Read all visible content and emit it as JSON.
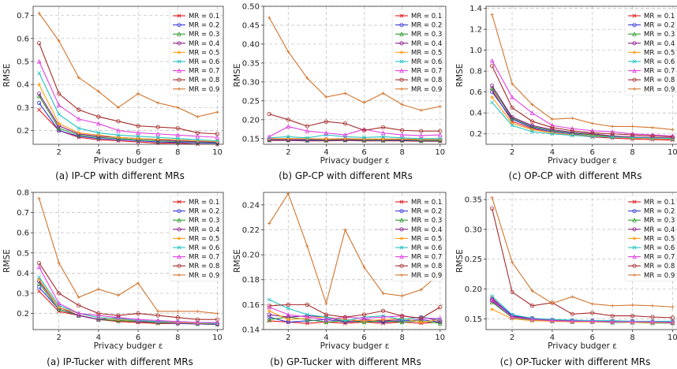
{
  "legend_labels": [
    "MR = 0.1",
    "MR = 0.2",
    "MR = 0.3",
    "MR = 0.4",
    "MR = 0.5",
    "MR = 0.6",
    "MR = 0.7",
    "MR = 0.8",
    "MR = 0.9"
  ],
  "series_colors": [
    "#e41a1c",
    "#3a3ad8",
    "#2e9a2e",
    "#8b1a8b",
    "#ff9f1c",
    "#22c3c3",
    "#e040e0",
    "#a52a2a",
    "#d2752e"
  ],
  "chart_data": [
    {
      "type": "line",
      "caption": "(a) IP-CP with different MRs",
      "xlabel": "Privacy budger ε",
      "ylabel": "RMSE",
      "x": [
        1,
        2,
        3,
        4,
        5,
        6,
        7,
        8,
        9,
        10
      ],
      "xlim": [
        0.7,
        10.3
      ],
      "ylim": [
        0.14,
        0.74
      ],
      "xticks": [
        2,
        4,
        6,
        8,
        10
      ],
      "yticks": [
        0.2,
        0.3,
        0.4,
        0.5,
        0.6,
        0.7
      ],
      "ytick_labels": [
        "0.2",
        "0.3",
        "0.4",
        "0.5",
        "0.6",
        "0.7"
      ],
      "series": [
        {
          "name": "MR = 0.1",
          "values": [
            0.29,
            0.2,
            0.17,
            0.16,
            0.155,
            0.15,
            0.145,
            0.145,
            0.14,
            0.14
          ]
        },
        {
          "name": "MR = 0.2",
          "values": [
            0.32,
            0.2,
            0.175,
            0.165,
            0.16,
            0.155,
            0.15,
            0.148,
            0.146,
            0.145
          ]
        },
        {
          "name": "MR = 0.3",
          "values": [
            0.35,
            0.21,
            0.18,
            0.17,
            0.165,
            0.16,
            0.155,
            0.152,
            0.15,
            0.148
          ]
        },
        {
          "name": "MR = 0.4",
          "values": [
            0.36,
            0.22,
            0.185,
            0.175,
            0.17,
            0.165,
            0.16,
            0.155,
            0.152,
            0.15
          ]
        },
        {
          "name": "MR = 0.5",
          "values": [
            0.4,
            0.23,
            0.19,
            0.18,
            0.17,
            0.165,
            0.162,
            0.16,
            0.155,
            0.152
          ]
        },
        {
          "name": "MR = 0.6",
          "values": [
            0.45,
            0.27,
            0.21,
            0.19,
            0.18,
            0.175,
            0.17,
            0.165,
            0.16,
            0.155
          ]
        },
        {
          "name": "MR = 0.7",
          "values": [
            0.5,
            0.31,
            0.25,
            0.23,
            0.2,
            0.19,
            0.185,
            0.18,
            0.175,
            0.17
          ]
        },
        {
          "name": "MR = 0.8",
          "values": [
            0.58,
            0.36,
            0.29,
            0.26,
            0.24,
            0.22,
            0.215,
            0.21,
            0.19,
            0.185
          ]
        },
        {
          "name": "MR = 0.9",
          "values": [
            0.71,
            0.59,
            0.43,
            0.37,
            0.3,
            0.36,
            0.32,
            0.3,
            0.26,
            0.28
          ]
        }
      ]
    },
    {
      "type": "line",
      "caption": "(b) GP-CP with different MRs",
      "xlabel": "Privacy budger ε",
      "ylabel": "RMSE",
      "x": [
        1,
        2,
        3,
        4,
        5,
        6,
        7,
        8,
        9,
        10
      ],
      "xlim": [
        0.7,
        10.3
      ],
      "ylim": [
        0.135,
        0.5
      ],
      "xticks": [
        2,
        4,
        6,
        8,
        10
      ],
      "yticks": [
        0.15,
        0.2,
        0.25,
        0.3,
        0.35,
        0.4,
        0.45,
        0.5
      ],
      "ytick_labels": [
        "0.15",
        "0.20",
        "0.25",
        "0.30",
        "0.35",
        "0.40",
        "0.45",
        "0.50"
      ],
      "series": [
        {
          "name": "MR = 0.1",
          "values": [
            0.145,
            0.145,
            0.144,
            0.144,
            0.145,
            0.144,
            0.144,
            0.144,
            0.143,
            0.143
          ]
        },
        {
          "name": "MR = 0.2",
          "values": [
            0.146,
            0.146,
            0.145,
            0.145,
            0.146,
            0.145,
            0.145,
            0.145,
            0.144,
            0.144
          ]
        },
        {
          "name": "MR = 0.3",
          "values": [
            0.147,
            0.147,
            0.147,
            0.146,
            0.147,
            0.146,
            0.146,
            0.146,
            0.145,
            0.145
          ]
        },
        {
          "name": "MR = 0.4",
          "values": [
            0.148,
            0.148,
            0.148,
            0.148,
            0.148,
            0.148,
            0.148,
            0.147,
            0.147,
            0.147
          ]
        },
        {
          "name": "MR = 0.5",
          "values": [
            0.15,
            0.15,
            0.15,
            0.149,
            0.15,
            0.149,
            0.149,
            0.149,
            0.148,
            0.148
          ]
        },
        {
          "name": "MR = 0.6",
          "values": [
            0.152,
            0.155,
            0.152,
            0.16,
            0.155,
            0.153,
            0.155,
            0.152,
            0.15,
            0.15
          ]
        },
        {
          "name": "MR = 0.7",
          "values": [
            0.155,
            0.182,
            0.17,
            0.165,
            0.16,
            0.175,
            0.165,
            0.16,
            0.158,
            0.16
          ]
        },
        {
          "name": "MR = 0.8",
          "values": [
            0.215,
            0.2,
            0.183,
            0.195,
            0.19,
            0.172,
            0.18,
            0.172,
            0.17,
            0.17
          ]
        },
        {
          "name": "MR = 0.9",
          "values": [
            0.47,
            0.38,
            0.31,
            0.26,
            0.27,
            0.245,
            0.27,
            0.24,
            0.225,
            0.235
          ]
        }
      ]
    },
    {
      "type": "line",
      "caption": "(c) OP-CP with different MRs",
      "xlabel": "Privacy budger ε",
      "ylabel": "RMSE",
      "x": [
        1,
        2,
        3,
        4,
        5,
        6,
        7,
        8,
        9,
        10
      ],
      "xlim": [
        0.7,
        10.3
      ],
      "ylim": [
        0.1,
        1.42
      ],
      "xticks": [
        2,
        4,
        6,
        8,
        10
      ],
      "yticks": [
        0.2,
        0.4,
        0.6,
        0.8,
        1.0,
        1.2,
        1.4
      ],
      "ytick_labels": [
        "0.2",
        "0.4",
        "0.6",
        "0.8",
        "1.0",
        "1.2",
        "1.4"
      ],
      "series": [
        {
          "name": "MR = 0.1",
          "values": [
            0.62,
            0.32,
            0.25,
            0.21,
            0.19,
            0.17,
            0.16,
            0.15,
            0.145,
            0.14
          ]
        },
        {
          "name": "MR = 0.2",
          "values": [
            0.6,
            0.34,
            0.26,
            0.22,
            0.2,
            0.18,
            0.17,
            0.16,
            0.155,
            0.15
          ]
        },
        {
          "name": "MR = 0.3",
          "values": [
            0.64,
            0.35,
            0.27,
            0.23,
            0.21,
            0.19,
            0.175,
            0.165,
            0.16,
            0.155
          ]
        },
        {
          "name": "MR = 0.4",
          "values": [
            0.66,
            0.36,
            0.28,
            0.24,
            0.215,
            0.2,
            0.18,
            0.17,
            0.165,
            0.16
          ]
        },
        {
          "name": "MR = 0.5",
          "values": [
            0.55,
            0.3,
            0.24,
            0.21,
            0.19,
            0.18,
            0.17,
            0.16,
            0.155,
            0.15
          ]
        },
        {
          "name": "MR = 0.6",
          "values": [
            0.5,
            0.28,
            0.22,
            0.2,
            0.185,
            0.175,
            0.17,
            0.165,
            0.16,
            0.155
          ]
        },
        {
          "name": "MR = 0.7",
          "values": [
            0.9,
            0.55,
            0.4,
            0.28,
            0.25,
            0.23,
            0.22,
            0.2,
            0.19,
            0.18
          ]
        },
        {
          "name": "MR = 0.8",
          "values": [
            0.85,
            0.45,
            0.32,
            0.26,
            0.23,
            0.21,
            0.2,
            0.19,
            0.18,
            0.17
          ]
        },
        {
          "name": "MR = 0.9",
          "values": [
            1.34,
            0.68,
            0.48,
            0.34,
            0.35,
            0.3,
            0.27,
            0.27,
            0.26,
            0.24
          ]
        }
      ]
    },
    {
      "type": "line",
      "caption": "(a) IP-Tucker with different MRs",
      "xlabel": "Privacy budger ε",
      "ylabel": "RMSE",
      "x": [
        1,
        2,
        3,
        4,
        5,
        6,
        7,
        8,
        9,
        10
      ],
      "xlim": [
        0.7,
        10.3
      ],
      "ylim": [
        0.12,
        0.8
      ],
      "xticks": [
        2,
        4,
        6,
        8,
        10
      ],
      "yticks": [
        0.2,
        0.3,
        0.4,
        0.5,
        0.6,
        0.7,
        0.8
      ],
      "ytick_labels": [
        "0.2",
        "0.3",
        "0.4",
        "0.5",
        "0.6",
        "0.7",
        "0.8"
      ],
      "series": [
        {
          "name": "MR = 0.1",
          "values": [
            0.31,
            0.21,
            0.19,
            0.17,
            0.16,
            0.155,
            0.15,
            0.15,
            0.148,
            0.145
          ]
        },
        {
          "name": "MR = 0.2",
          "values": [
            0.33,
            0.22,
            0.19,
            0.17,
            0.165,
            0.16,
            0.155,
            0.15,
            0.148,
            0.146
          ]
        },
        {
          "name": "MR = 0.3",
          "values": [
            0.35,
            0.22,
            0.19,
            0.17,
            0.165,
            0.16,
            0.155,
            0.155,
            0.15,
            0.148
          ]
        },
        {
          "name": "MR = 0.4",
          "values": [
            0.36,
            0.23,
            0.19,
            0.17,
            0.18,
            0.16,
            0.16,
            0.155,
            0.152,
            0.15
          ]
        },
        {
          "name": "MR = 0.5",
          "values": [
            0.37,
            0.23,
            0.2,
            0.18,
            0.17,
            0.165,
            0.16,
            0.155,
            0.152,
            0.15
          ]
        },
        {
          "name": "MR = 0.6",
          "values": [
            0.38,
            0.24,
            0.2,
            0.18,
            0.175,
            0.165,
            0.16,
            0.16,
            0.155,
            0.15
          ]
        },
        {
          "name": "MR = 0.7",
          "values": [
            0.43,
            0.25,
            0.2,
            0.19,
            0.18,
            0.17,
            0.165,
            0.16,
            0.155,
            0.155
          ]
        },
        {
          "name": "MR = 0.8",
          "values": [
            0.45,
            0.3,
            0.24,
            0.2,
            0.19,
            0.2,
            0.19,
            0.18,
            0.17,
            0.17
          ]
        },
        {
          "name": "MR = 0.9",
          "values": [
            0.77,
            0.45,
            0.28,
            0.32,
            0.29,
            0.35,
            0.21,
            0.21,
            0.21,
            0.2
          ]
        }
      ]
    },
    {
      "type": "line",
      "caption": "(b) GP-Tucker with different MRs",
      "xlabel": "Privacy budger ε",
      "ylabel": "RMSE",
      "x": [
        1,
        2,
        3,
        4,
        5,
        6,
        7,
        8,
        9,
        10
      ],
      "xlim": [
        0.7,
        10.3
      ],
      "ylim": [
        0.14,
        0.25
      ],
      "xticks": [
        2,
        4,
        6,
        8,
        10
      ],
      "yticks": [
        0.14,
        0.16,
        0.18,
        0.2,
        0.22,
        0.24
      ],
      "ytick_labels": [
        "0.14",
        "0.16",
        "0.18",
        "0.20",
        "0.22",
        "0.24"
      ],
      "series": [
        {
          "name": "MR = 0.1",
          "values": [
            0.147,
            0.146,
            0.145,
            0.146,
            0.145,
            0.146,
            0.145,
            0.146,
            0.145,
            0.146
          ]
        },
        {
          "name": "MR = 0.2",
          "values": [
            0.15,
            0.146,
            0.147,
            0.148,
            0.146,
            0.147,
            0.146,
            0.147,
            0.148,
            0.146
          ]
        },
        {
          "name": "MR = 0.3",
          "values": [
            0.148,
            0.15,
            0.148,
            0.146,
            0.147,
            0.146,
            0.147,
            0.146,
            0.147,
            0.145
          ]
        },
        {
          "name": "MR = 0.4",
          "values": [
            0.152,
            0.15,
            0.151,
            0.15,
            0.146,
            0.148,
            0.147,
            0.148,
            0.15,
            0.147
          ]
        },
        {
          "name": "MR = 0.5",
          "values": [
            0.155,
            0.148,
            0.149,
            0.15,
            0.148,
            0.147,
            0.148,
            0.149,
            0.146,
            0.148
          ]
        },
        {
          "name": "MR = 0.6",
          "values": [
            0.164,
            0.157,
            0.152,
            0.15,
            0.147,
            0.15,
            0.151,
            0.148,
            0.15,
            0.148
          ]
        },
        {
          "name": "MR = 0.7",
          "values": [
            0.158,
            0.152,
            0.15,
            0.148,
            0.15,
            0.149,
            0.15,
            0.151,
            0.149,
            0.149
          ]
        },
        {
          "name": "MR = 0.8",
          "values": [
            0.159,
            0.16,
            0.16,
            0.152,
            0.15,
            0.152,
            0.155,
            0.151,
            0.149,
            0.158
          ]
        },
        {
          "name": "MR = 0.9",
          "values": [
            0.225,
            0.249,
            0.207,
            0.161,
            0.22,
            0.19,
            0.169,
            0.167,
            0.172,
            0.185
          ]
        }
      ]
    },
    {
      "type": "line",
      "caption": "(c) OP-Tucker with different MRs",
      "xlabel": "Privacy budger ε",
      "ylabel": "RMSE",
      "x": [
        1,
        2,
        3,
        4,
        5,
        6,
        7,
        8,
        9,
        10
      ],
      "xlim": [
        0.7,
        10.3
      ],
      "ylim": [
        0.132,
        0.362
      ],
      "xticks": [
        2,
        4,
        6,
        8,
        10
      ],
      "yticks": [
        0.15,
        0.2,
        0.25,
        0.3,
        0.35
      ],
      "ytick_labels": [
        "0.15",
        "0.20",
        "0.25",
        "0.30",
        "0.35"
      ],
      "series": [
        {
          "name": "MR = 0.1",
          "values": [
            0.185,
            0.155,
            0.15,
            0.147,
            0.146,
            0.145,
            0.145,
            0.144,
            0.144,
            0.143
          ]
        },
        {
          "name": "MR = 0.2",
          "values": [
            0.183,
            0.156,
            0.151,
            0.148,
            0.147,
            0.147,
            0.146,
            0.145,
            0.145,
            0.145
          ]
        },
        {
          "name": "MR = 0.3",
          "values": [
            0.178,
            0.152,
            0.148,
            0.146,
            0.145,
            0.145,
            0.144,
            0.144,
            0.143,
            0.143
          ]
        },
        {
          "name": "MR = 0.4",
          "values": [
            0.18,
            0.154,
            0.15,
            0.148,
            0.147,
            0.147,
            0.146,
            0.146,
            0.145,
            0.145
          ]
        },
        {
          "name": "MR = 0.5",
          "values": [
            0.166,
            0.15,
            0.147,
            0.146,
            0.145,
            0.145,
            0.145,
            0.144,
            0.144,
            0.144
          ]
        },
        {
          "name": "MR = 0.6",
          "values": [
            0.188,
            0.157,
            0.151,
            0.149,
            0.148,
            0.147,
            0.147,
            0.146,
            0.146,
            0.146
          ]
        },
        {
          "name": "MR = 0.7",
          "values": [
            0.182,
            0.153,
            0.149,
            0.147,
            0.146,
            0.146,
            0.145,
            0.145,
            0.145,
            0.144
          ]
        },
        {
          "name": "MR = 0.8",
          "values": [
            0.335,
            0.195,
            0.172,
            0.177,
            0.158,
            0.16,
            0.155,
            0.155,
            0.153,
            0.152
          ]
        },
        {
          "name": "MR = 0.9",
          "values": [
            0.353,
            0.245,
            0.197,
            0.176,
            0.187,
            0.175,
            0.172,
            0.173,
            0.172,
            0.17
          ]
        }
      ]
    }
  ]
}
